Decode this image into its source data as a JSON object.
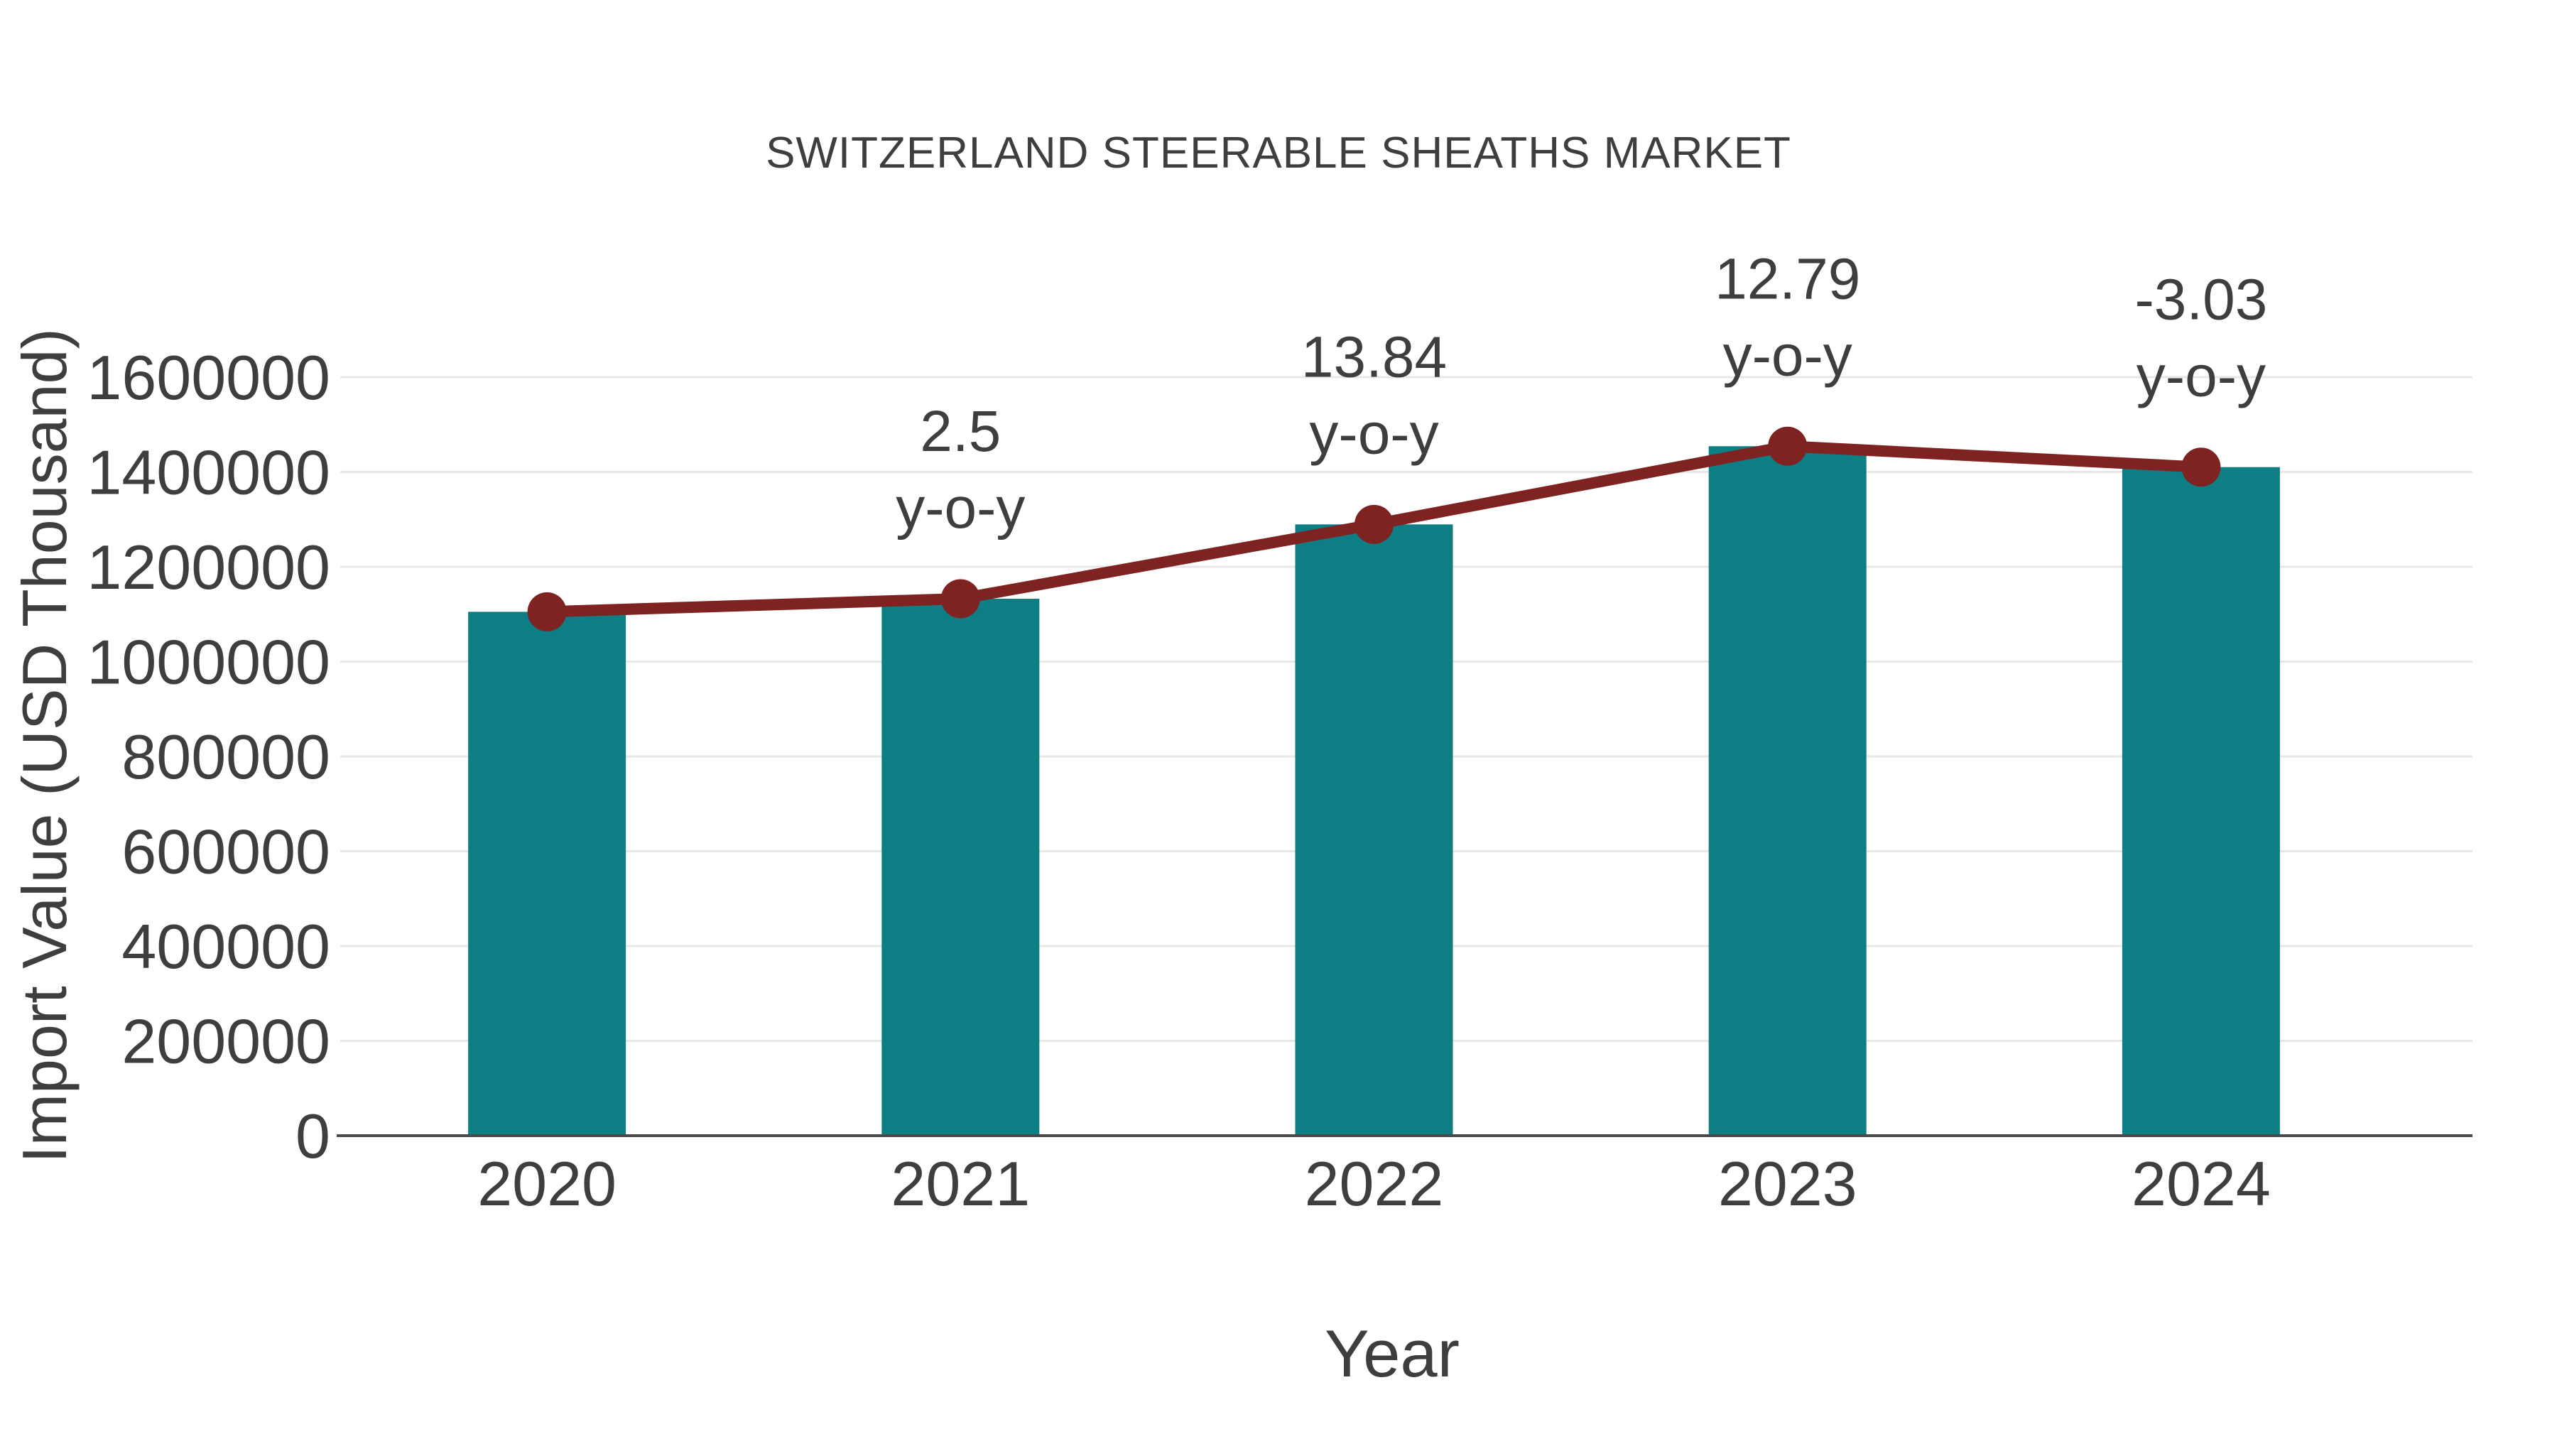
{
  "chart_data": {
    "type": "bar",
    "title": "SWITZERLAND STEERABLE SHEATHS MARKET",
    "xlabel": "Year",
    "ylabel": "Import Value (USD Thousand)",
    "categories": [
      "2020",
      "2021",
      "2022",
      "2023",
      "2024"
    ],
    "series": [
      {
        "name": "Import Value (USD Thousand)",
        "type": "bar",
        "color": "#0d7f84",
        "values": [
          1105000,
          1132600,
          1289400,
          1454300,
          1410200
        ]
      },
      {
        "name": "y-o-y growth line",
        "type": "line",
        "color": "#7e2222",
        "values": [
          1105000,
          1132600,
          1289400,
          1454300,
          1410200
        ],
        "yoy_percent": [
          null,
          2.5,
          13.84,
          12.79,
          -3.03
        ]
      }
    ],
    "annotations": [
      {
        "x": "2021",
        "lines": [
          "2.5",
          "y-o-y"
        ]
      },
      {
        "x": "2022",
        "lines": [
          "13.84",
          "y-o-y"
        ]
      },
      {
        "x": "2023",
        "lines": [
          "12.79",
          "y-o-y"
        ]
      },
      {
        "x": "2024",
        "lines": [
          "-3.03",
          "y-o-y"
        ]
      }
    ],
    "yticks": [
      0,
      200000,
      400000,
      600000,
      800000,
      1000000,
      1200000,
      1400000,
      1600000
    ],
    "ylim": [
      0,
      1600000
    ],
    "grid": true,
    "legend": false,
    "style": {
      "bar_color": "#0d7f84",
      "line_color": "#7e2222",
      "text_color": "#3e3e3e",
      "grid_color": "#e7e7e7",
      "axis_color": "#4a4a4a",
      "background": "#ffffff"
    }
  }
}
